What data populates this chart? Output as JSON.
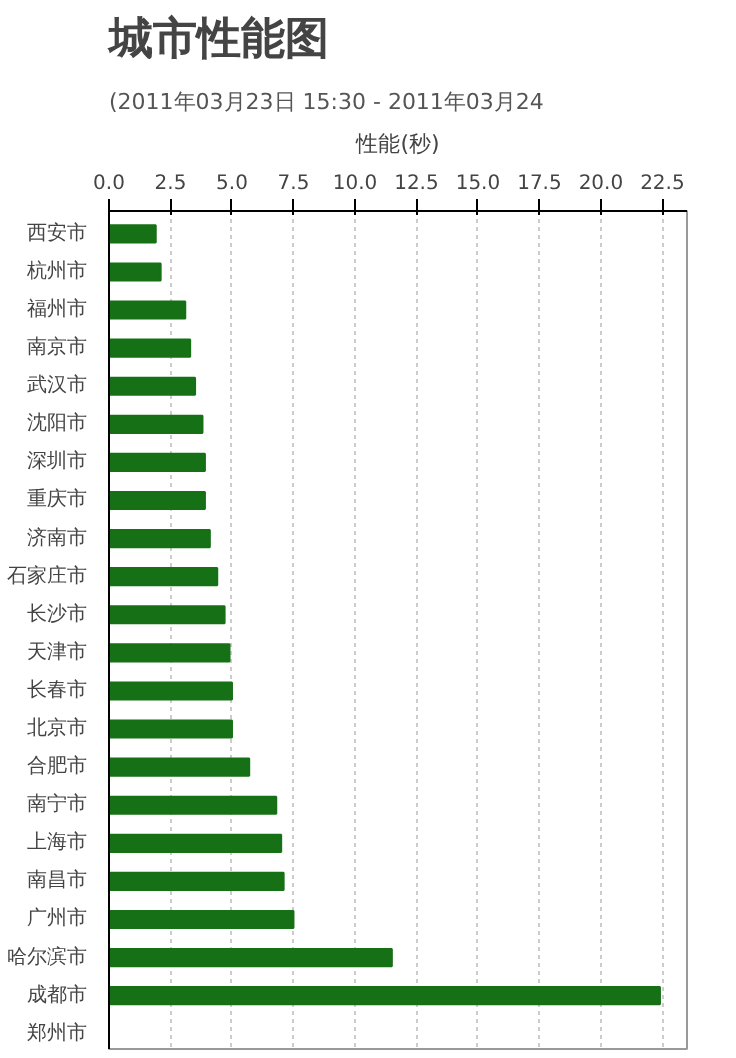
{
  "chart_data": {
    "type": "bar",
    "orientation": "horizontal",
    "title": "城市性能图",
    "subtitle": "(2011年03月23日 15:30 - 2011年03月24",
    "xlabel": "性能(秒)",
    "categories": [
      "西安市",
      "杭州市",
      "福州市",
      "南京市",
      "武汉市",
      "沈阳市",
      "深圳市",
      "重庆市",
      "济南市",
      "石家庄市",
      "长沙市",
      "天津市",
      "长春市",
      "北京市",
      "合肥市",
      "南宁市",
      "上海市",
      "南昌市",
      "广州市",
      "哈尔滨市",
      "成都市",
      "郑州市"
    ],
    "values": [
      1.9,
      2.1,
      3.1,
      3.3,
      3.5,
      3.8,
      3.9,
      3.9,
      4.1,
      4.4,
      4.7,
      4.9,
      5.0,
      5.0,
      5.7,
      6.8,
      7.0,
      7.1,
      7.5,
      11.5,
      22.4,
      null
    ],
    "color": "#167016",
    "xlim": [
      0,
      23.5
    ],
    "xticks": [
      {
        "value": 0,
        "label": "0.0"
      },
      2.5,
      {
        "value": 5,
        "label": "5.0"
      },
      7.5,
      {
        "value": 10,
        "label": "10.0"
      },
      12.5,
      {
        "value": 15,
        "label": "15.0"
      },
      17.5,
      {
        "value": 20,
        "label": "20.0"
      },
      22.5
    ],
    "grid": "x"
  }
}
